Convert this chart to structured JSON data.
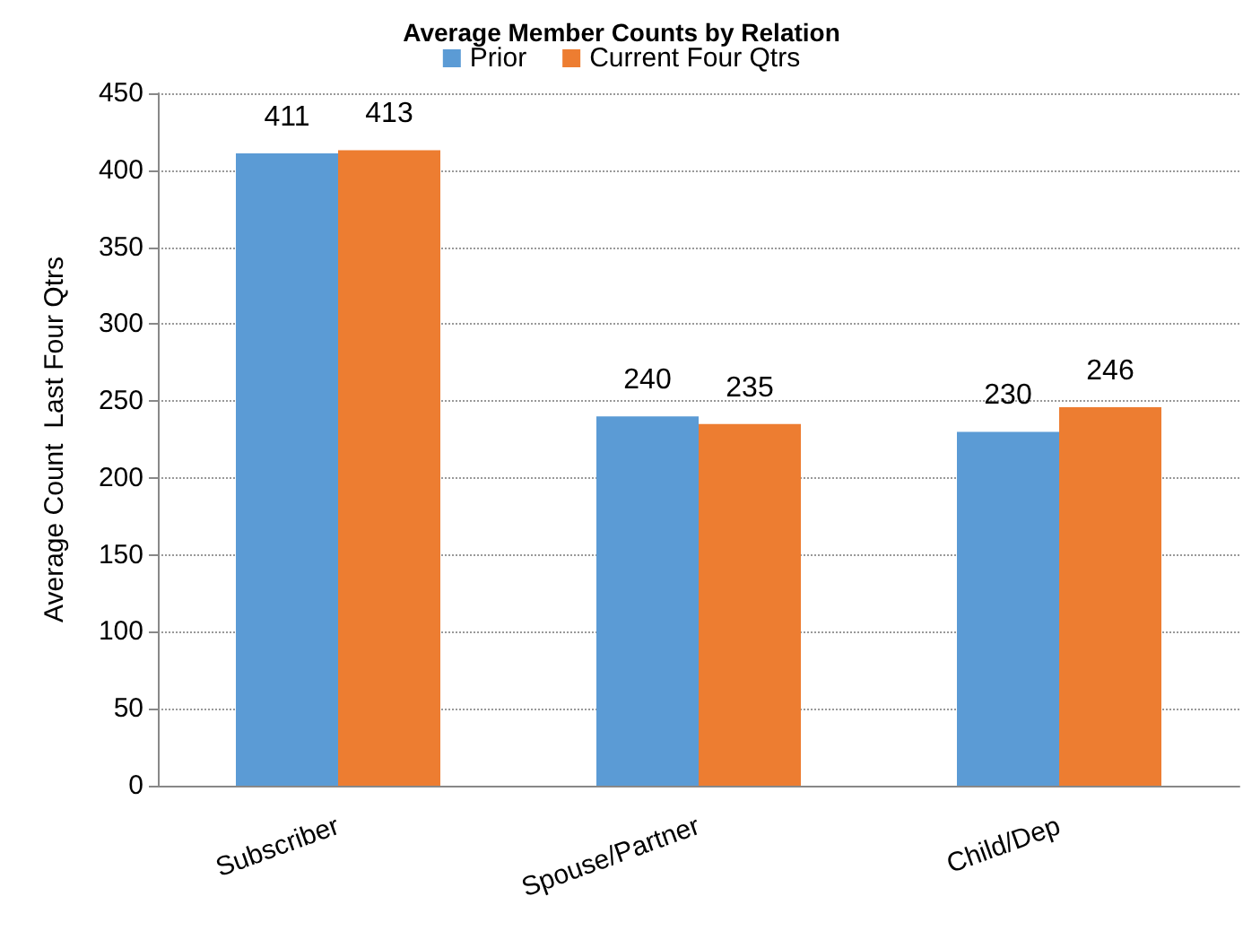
{
  "chart_data": {
    "type": "bar",
    "title": "Average Member Counts by Relation",
    "ylabel": "Average Count  Last Four Qtrs",
    "categories": [
      "Subscriber",
      "Spouse/Partner",
      "Child/Dep"
    ],
    "series": [
      {
        "name": "Prior",
        "color": "#5b9bd5",
        "values": [
          411,
          240,
          230
        ]
      },
      {
        "name": "Current Four Qtrs",
        "color": "#ed7d31",
        "values": [
          413,
          235,
          246
        ]
      }
    ],
    "ylim": [
      0,
      450
    ],
    "yticks": [
      0,
      50,
      100,
      150,
      200,
      250,
      300,
      350,
      400,
      450
    ],
    "grid": "y",
    "legend": "top",
    "data_labels": true
  }
}
